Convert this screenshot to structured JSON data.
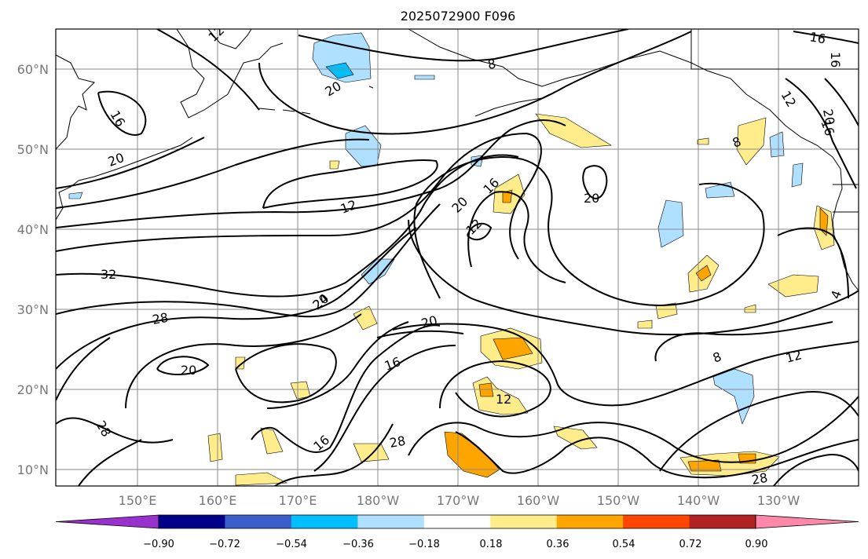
{
  "title": "2025072900 F096",
  "lat_labels": [
    "60°N",
    "50°N",
    "40°N",
    "30°N",
    "20°N",
    "10°N"
  ],
  "lon_labels": [
    "150°E",
    "160°E",
    "170°E",
    "180°W",
    "170°W",
    "160°W",
    "150°W",
    "140°W",
    "130°W"
  ],
  "colorbar": {
    "ticks": [
      "−0.90",
      "−0.72",
      "−0.54",
      "−0.36",
      "−0.18",
      "0.18",
      "0.36",
      "0.54",
      "0.72",
      "0.90"
    ],
    "colors": [
      "#9932cc",
      "#00008b",
      "#3a5fcd",
      "#00bfff",
      "#b0e0ff",
      "#ffffff",
      "#ffec8b",
      "#ffa500",
      "#ff4500",
      "#b22222",
      "#ff88aa"
    ]
  },
  "contour_labels": [
    "12",
    "16",
    "8",
    "20",
    "16",
    "16",
    "12",
    "12",
    "16",
    "20",
    "20",
    "20",
    "12",
    "16",
    "20",
    "8",
    "20",
    "24",
    "28",
    "32",
    "20",
    "20",
    "16",
    "12",
    "8",
    "12",
    "28",
    "28",
    "16",
    "28",
    "4",
    "20"
  ]
}
